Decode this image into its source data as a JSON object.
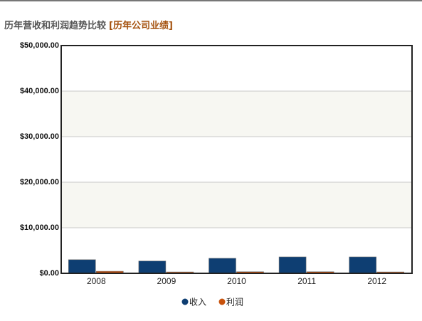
{
  "chart_data": {
    "type": "bar",
    "title": "历年营收和利润趋势比较",
    "subtitle": "[历年公司业绩]",
    "categories": [
      "2008",
      "2009",
      "2010",
      "2011",
      "2012"
    ],
    "series": [
      {
        "name": "收入",
        "color": "#0e3e72",
        "values": [
          3000,
          2700,
          3300,
          3600,
          3600
        ]
      },
      {
        "name": "利润",
        "color": "#c8520c",
        "values": [
          450,
          300,
          350,
          350,
          300
        ]
      }
    ],
    "ylim": [
      0,
      50000
    ],
    "yticks": [
      {
        "value": 0,
        "label": "$0.00"
      },
      {
        "value": 10000,
        "label": "$10,000.00"
      },
      {
        "value": 20000,
        "label": "$20,000.00"
      },
      {
        "value": 30000,
        "label": "$30,000.00"
      },
      {
        "value": 40000,
        "label": "$40,000.00"
      },
      {
        "value": 50000,
        "label": "$50,000.00"
      }
    ],
    "grid": true,
    "legend": "bottom"
  }
}
